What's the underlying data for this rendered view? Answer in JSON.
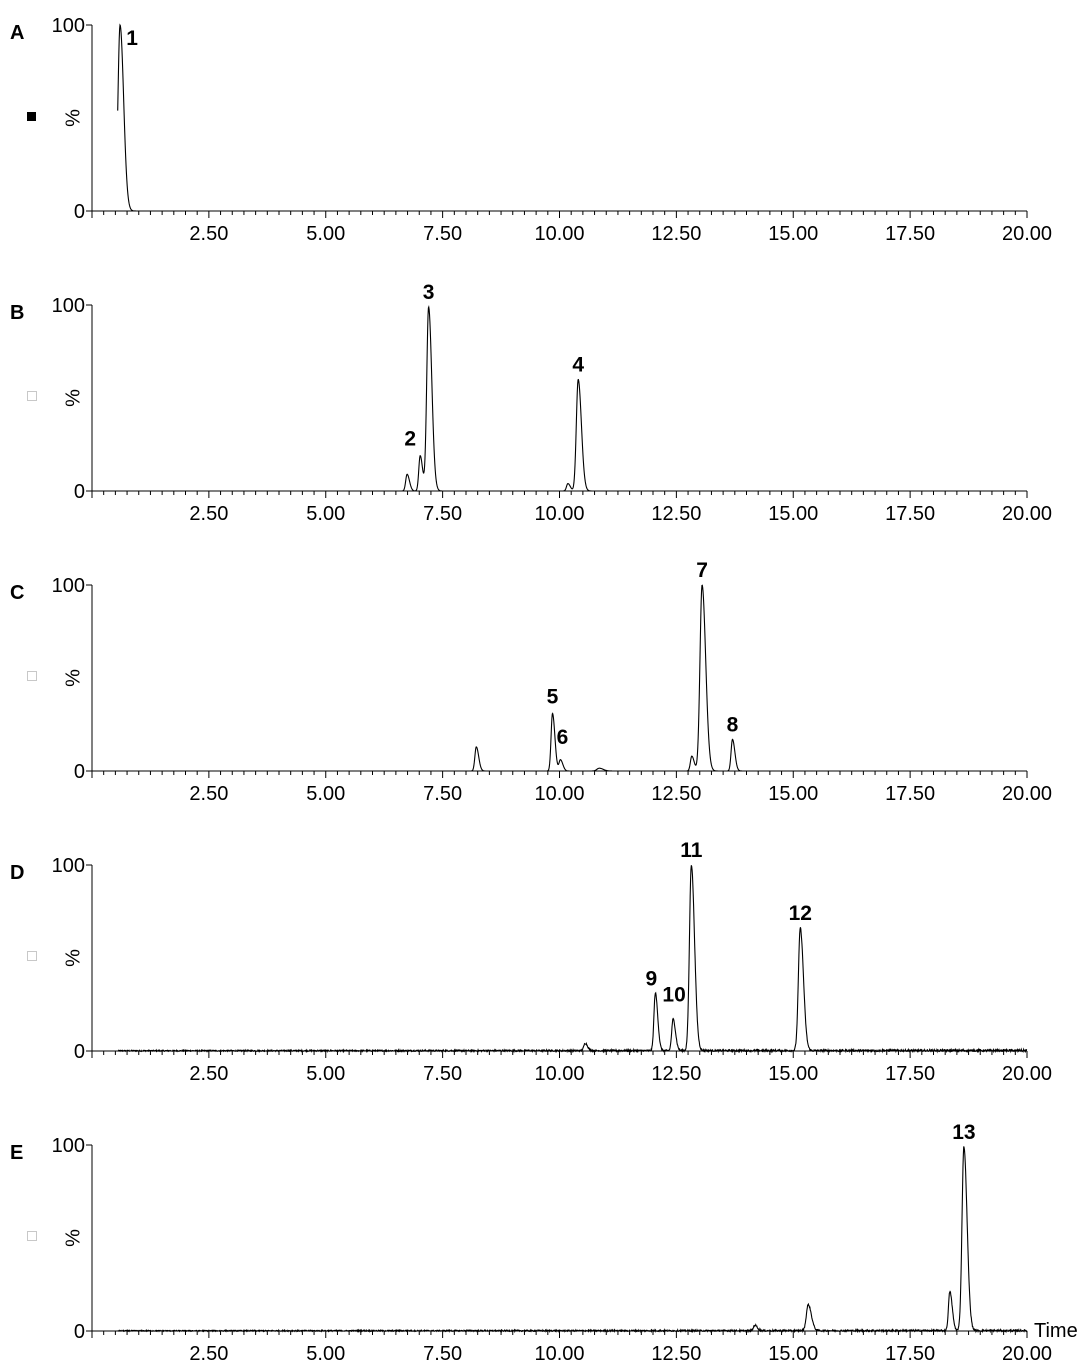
{
  "chart_data": [
    {
      "type": "line",
      "panel_label": "A",
      "ylabel": "%",
      "xlabel": "",
      "xlim": [
        0,
        20
      ],
      "ylim": [
        0,
        100
      ],
      "x_ticks": [
        "2.50",
        "5.00",
        "7.50",
        "10.00",
        "12.50",
        "15.00",
        "17.50",
        "20.00"
      ],
      "y_ticks": [
        "0",
        "100"
      ],
      "marker": "filled",
      "noise": 0,
      "peaks": [
        {
          "x": 0.6,
          "y": 100,
          "w": 0.045,
          "label": "1"
        }
      ]
    },
    {
      "type": "line",
      "panel_label": "B",
      "ylabel": "%",
      "xlabel": "",
      "xlim": [
        0,
        20
      ],
      "ylim": [
        0,
        100
      ],
      "x_ticks": [
        "2.50",
        "5.00",
        "7.50",
        "10.00",
        "12.50",
        "15.00",
        "17.50",
        "20.00"
      ],
      "y_ticks": [
        "0",
        "100"
      ],
      "marker": "open",
      "noise": 0,
      "peaks": [
        {
          "x": 6.74,
          "y": 9,
          "w": 0.03
        },
        {
          "x": 7.02,
          "y": 19,
          "w": 0.03,
          "label": "2"
        },
        {
          "x": 7.2,
          "y": 99,
          "w": 0.04,
          "label": "3"
        },
        {
          "x": 10.18,
          "y": 4,
          "w": 0.03
        },
        {
          "x": 10.4,
          "y": 60,
          "w": 0.04,
          "label": "4"
        }
      ]
    },
    {
      "type": "line",
      "panel_label": "C",
      "ylabel": "%",
      "xlabel": "",
      "xlim": [
        0,
        20
      ],
      "ylim": [
        0,
        100
      ],
      "x_ticks": [
        "2.50",
        "5.00",
        "7.50",
        "10.00",
        "12.50",
        "15.00",
        "17.50",
        "20.00"
      ],
      "y_ticks": [
        "0",
        "100"
      ],
      "marker": "open",
      "noise": 0,
      "peaks": [
        {
          "x": 8.22,
          "y": 13,
          "w": 0.03
        },
        {
          "x": 9.85,
          "y": 31,
          "w": 0.03,
          "label": "5"
        },
        {
          "x": 10.02,
          "y": 6,
          "w": 0.03,
          "label": "6"
        },
        {
          "x": 10.85,
          "y": 1.5,
          "w": 0.05
        },
        {
          "x": 12.83,
          "y": 8,
          "w": 0.03
        },
        {
          "x": 13.05,
          "y": 100,
          "w": 0.045,
          "label": "7"
        },
        {
          "x": 13.7,
          "y": 17,
          "w": 0.03,
          "label": "8"
        }
      ]
    },
    {
      "type": "line",
      "panel_label": "D",
      "ylabel": "%",
      "xlabel": "",
      "xlim": [
        0,
        20
      ],
      "ylim": [
        0,
        100
      ],
      "x_ticks": [
        "2.50",
        "5.00",
        "7.50",
        "10.00",
        "12.50",
        "15.00",
        "17.50",
        "20.00"
      ],
      "y_ticks": [
        "0",
        "100"
      ],
      "marker": "open",
      "noise": 0.6,
      "peaks": [
        {
          "x": 10.55,
          "y": 4,
          "w": 0.03
        },
        {
          "x": 12.05,
          "y": 31,
          "w": 0.03,
          "label": "9"
        },
        {
          "x": 12.43,
          "y": 17,
          "w": 0.03,
          "label": "10"
        },
        {
          "x": 12.82,
          "y": 100,
          "w": 0.04,
          "label": "11"
        },
        {
          "x": 15.15,
          "y": 66,
          "w": 0.04,
          "label": "12"
        }
      ]
    },
    {
      "type": "line",
      "panel_label": "E",
      "ylabel": "%",
      "xlabel": "Time",
      "xlim": [
        0,
        20
      ],
      "ylim": [
        0,
        100
      ],
      "x_ticks": [
        "2.50",
        "5.00",
        "7.50",
        "10.00",
        "12.50",
        "15.00",
        "17.50",
        "20.00"
      ],
      "y_ticks": [
        "0",
        "100"
      ],
      "marker": "open",
      "noise": 0.5,
      "peaks": [
        {
          "x": 14.18,
          "y": 3,
          "w": 0.03
        },
        {
          "x": 15.32,
          "y": 14,
          "w": 0.04
        },
        {
          "x": 18.35,
          "y": 21,
          "w": 0.03
        },
        {
          "x": 18.65,
          "y": 99,
          "w": 0.04,
          "label": "13"
        }
      ]
    }
  ]
}
